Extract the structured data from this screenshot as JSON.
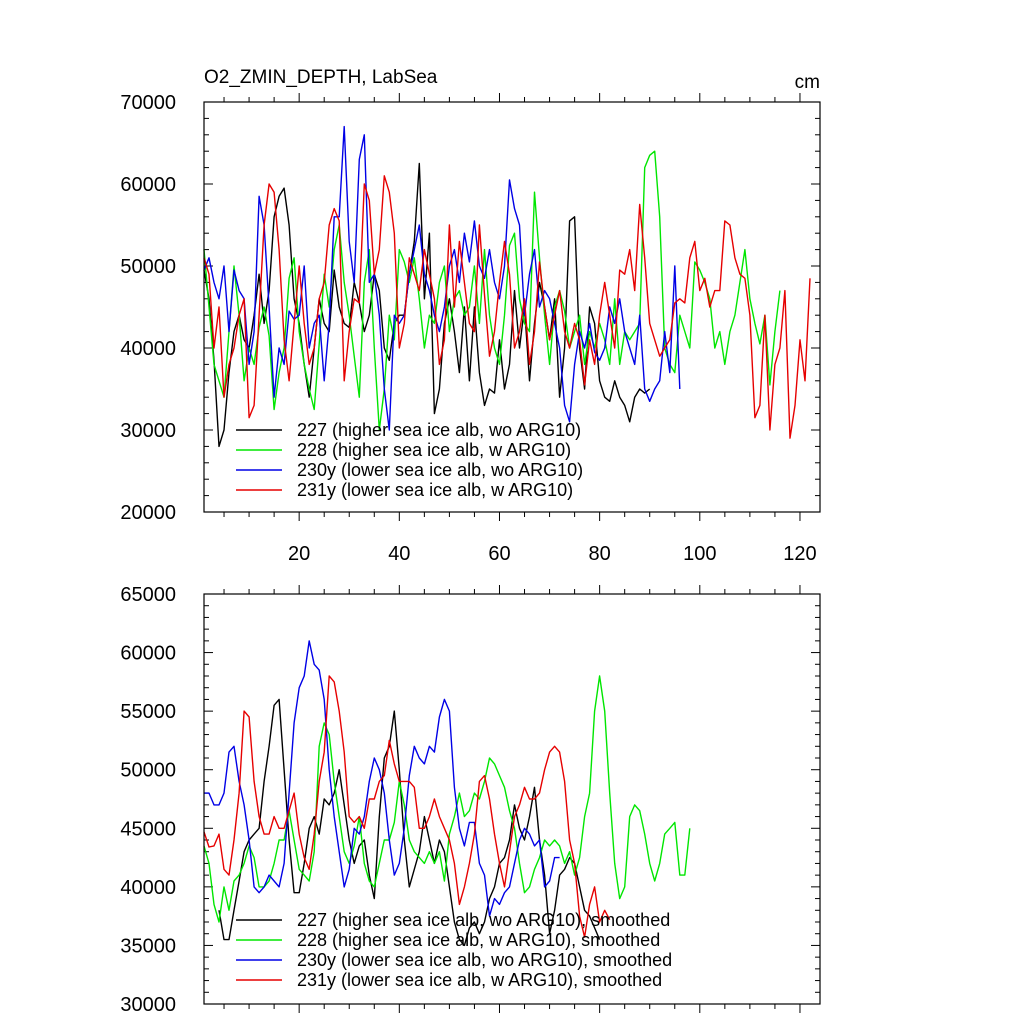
{
  "chart_data": [
    {
      "type": "line",
      "title": "O2_ZMIN_DEPTH, LabSea",
      "units": "cm",
      "xlabel": "",
      "ylabel": "",
      "xlim": [
        1,
        124
      ],
      "ylim": [
        20000,
        70000
      ],
      "xticks": [
        20,
        40,
        60,
        80,
        100,
        120
      ],
      "yticks": [
        20000,
        30000,
        40000,
        50000,
        60000,
        70000
      ],
      "legend_position": "bottom-left",
      "series": [
        {
          "name": "227 (higher sea ice alb, wo ARG10)",
          "color": "#000000",
          "x_start": 1,
          "values": [
            49500,
            46000,
            38500,
            28000,
            30000,
            37000,
            42000,
            44000,
            41000,
            40000,
            44000,
            49000,
            43000,
            47000,
            56000,
            58500,
            59500,
            55000,
            46000,
            43000,
            38000,
            34000,
            40000,
            46000,
            43000,
            42000,
            49500,
            45000,
            43000,
            42500,
            48000,
            45500,
            42000,
            44000,
            49000,
            47000,
            40000,
            38500,
            43000,
            44000,
            44000,
            49000,
            53000,
            62500,
            46000,
            54000,
            32000,
            35000,
            43000,
            46000,
            42000,
            37000,
            45000,
            36000,
            45000,
            37000,
            33000,
            35000,
            34500,
            41000,
            35000,
            38000,
            47000,
            40000,
            45000,
            36000,
            43000,
            48000,
            45000,
            41000,
            46000,
            34000,
            40000,
            55500,
            56000,
            40000,
            35000,
            45000,
            43000,
            36000,
            34000,
            33500,
            36000,
            34000,
            33000,
            31000,
            34000,
            35000,
            34500,
            35000
          ]
        },
        {
          "name": "228 (higher sea ice alb, w ARG10)",
          "color": "#00e600",
          "x_start": 1,
          "values": [
            52000,
            45000,
            38000,
            36000,
            34000,
            42000,
            50000,
            44000,
            36000,
            40000,
            38000,
            42500,
            45000,
            41500,
            32500,
            37000,
            40000,
            48500,
            51000,
            42000,
            38000,
            35000,
            32500,
            40500,
            49000,
            45000,
            52000,
            55000,
            48000,
            44000,
            39000,
            34000,
            48000,
            52000,
            40000,
            30000,
            35000,
            44000,
            41000,
            52000,
            50500,
            48000,
            51000,
            46000,
            40000,
            44000,
            43000,
            48000,
            50000,
            42000,
            46000,
            47000,
            44000,
            45000,
            50000,
            43000,
            52000,
            44000,
            40000,
            38000,
            44000,
            52500,
            54000,
            46000,
            43000,
            42000,
            59000,
            51000,
            44000,
            38000,
            45000,
            47000,
            44500,
            40000,
            42000,
            44000,
            38000,
            42000,
            40000,
            43000,
            41000,
            38000,
            46000,
            38000,
            42000,
            41000,
            42000,
            43000,
            62000,
            63500,
            64000,
            56000,
            40000,
            38000,
            37000,
            44000,
            42000,
            40000,
            50500,
            49500,
            48000,
            46000,
            40000,
            42000,
            38000,
            42000,
            44000,
            48000,
            52000,
            46000,
            43000,
            40500,
            44000,
            35500,
            42000,
            47000
          ]
        },
        {
          "name": "230y (lower sea ice alb, wo ARG10)",
          "color": "#0000e6",
          "x_start": 1,
          "values": [
            49500,
            51000,
            48000,
            46000,
            50000,
            42000,
            49500,
            47000,
            46000,
            38000,
            42000,
            58500,
            55000,
            45000,
            34000,
            40000,
            38000,
            44500,
            43500,
            44000,
            50000,
            40000,
            43000,
            44000,
            36000,
            43000,
            56000,
            56000,
            67000,
            53000,
            48000,
            63000,
            66000,
            48000,
            49000,
            44000,
            35000,
            30000,
            44000,
            43000,
            44000,
            49000,
            52000,
            55000,
            49000,
            47000,
            44000,
            42000,
            45000,
            50000,
            52000,
            48000,
            54000,
            50500,
            55500,
            50000,
            48500,
            52000,
            48000,
            46000,
            50000,
            60500,
            57000,
            55000,
            44000,
            49000,
            52000,
            45000,
            47000,
            46000,
            43000,
            40000,
            33000,
            31000,
            38000,
            42000,
            40000,
            43000,
            39500,
            38500,
            40000,
            45000,
            43000,
            46000,
            42000,
            40000,
            38000,
            44000,
            35000,
            33500,
            35000,
            36000,
            42000,
            37000,
            50000,
            35000
          ]
        },
        {
          "name": "231y (lower sea ice alb, w ARG10)",
          "color": "#e60000",
          "x_start": 1,
          "values": [
            51000,
            49000,
            40000,
            45000,
            34000,
            38000,
            40000,
            44000,
            46000,
            31500,
            33000,
            44000,
            55000,
            60000,
            59000,
            52000,
            41000,
            36000,
            43000,
            50000,
            43000,
            38000,
            40000,
            46000,
            48000,
            55000,
            57000,
            55500,
            36000,
            42000,
            46000,
            45500,
            60000,
            58000,
            49000,
            52000,
            61000,
            59000,
            54000,
            40000,
            43000,
            51000,
            49000,
            47000,
            52000,
            49000,
            46000,
            38000,
            41000,
            55000,
            45000,
            53000,
            48000,
            43000,
            42000,
            55000,
            46500,
            39000,
            42000,
            48000,
            53000,
            49000,
            40000,
            42000,
            46000,
            38000,
            42000,
            50500,
            45000,
            41000,
            44000,
            47000,
            42000,
            40000,
            43000,
            41000,
            35500,
            41000,
            38000,
            44000,
            48000,
            44000,
            40000,
            49500,
            49000,
            52000,
            47000,
            57500,
            51000,
            43000,
            41000,
            39000,
            40000,
            41000,
            45500,
            46000,
            45500,
            51000,
            53000,
            47000,
            48500,
            45000,
            47000,
            47000,
            55500,
            55000,
            51000,
            49000,
            48500,
            44000,
            31500,
            33000,
            44000,
            30000,
            38000,
            40000,
            47000,
            29000,
            33000,
            41000,
            36000,
            48500
          ]
        }
      ]
    },
    {
      "type": "line",
      "title": "",
      "xlabel": "",
      "ylabel": "",
      "xlim": [
        1,
        124
      ],
      "ylim": [
        30000,
        65000
      ],
      "xticks": [
        20,
        40,
        60,
        80,
        100,
        120
      ],
      "yticks": [
        30000,
        35000,
        40000,
        45000,
        50000,
        55000,
        60000,
        65000
      ],
      "legend_position": "bottom-left",
      "series": [
        {
          "name": "227 (higher sea ice alb, wo ARG10), smoothed",
          "color": "#000000",
          "x_start": 4,
          "values": [
            38000,
            35500,
            35500,
            38000,
            40500,
            43000,
            44000,
            44500,
            45000,
            49000,
            52000,
            55500,
            56000,
            50000,
            44000,
            39500,
            39500,
            42000,
            45000,
            46000,
            44500,
            47500,
            47000,
            48000,
            50000,
            47000,
            44000,
            42000,
            43500,
            44000,
            41000,
            39000,
            46000,
            51000,
            52000,
            55000,
            50000,
            44000,
            40000,
            41500,
            43000,
            46000,
            44000,
            42000,
            44000,
            43000,
            40000,
            37000,
            35500,
            35000,
            36500,
            37000,
            36000,
            37000,
            39000,
            40000,
            42000,
            42500,
            44000,
            47000,
            45000,
            44000,
            46000,
            48500,
            44000,
            41000,
            36000,
            38000,
            41000,
            41500,
            42500,
            42000,
            40000,
            38000,
            37500,
            36500,
            35500
          ]
        },
        {
          "name": "228 (higher sea ice alb, w ARG10), smoothed",
          "color": "#00e600",
          "x_start": 1,
          "values": [
            43500,
            42000,
            38500,
            37000,
            40000,
            38000,
            40500,
            41000,
            42000,
            43500,
            42500,
            40000,
            40000,
            40500,
            42000,
            44000,
            44000,
            46500,
            44000,
            41500,
            41000,
            40500,
            43000,
            52000,
            54000,
            53000,
            49000,
            46000,
            43000,
            42000,
            43500,
            46000,
            42000,
            40500,
            40000,
            42000,
            44000,
            44000,
            45500,
            49000,
            47000,
            44000,
            43000,
            42500,
            42000,
            43000,
            42000,
            43000,
            40500,
            44500,
            46000,
            48000,
            46000,
            46500,
            48000,
            47500,
            49000,
            51000,
            50500,
            49500,
            48500,
            46500,
            45000,
            42000,
            39500,
            40000,
            41500,
            42500,
            44000,
            43500,
            44000,
            43500,
            42000,
            43000,
            41000,
            42500,
            46000,
            48000,
            55000,
            58000,
            55000,
            48000,
            42000,
            39000,
            40000,
            46000,
            47000,
            46500,
            44500,
            42000,
            40500,
            42000,
            44500,
            45000,
            45500,
            41000,
            41000,
            45000
          ]
        },
        {
          "name": "230y (lower sea ice alb, wo ARG10), smoothed",
          "color": "#0000e6",
          "x_start": 1,
          "values": [
            48000,
            48000,
            47000,
            47000,
            48000,
            51500,
            52000,
            49000,
            47000,
            44000,
            40000,
            39500,
            40000,
            41000,
            40500,
            40000,
            42000,
            48000,
            54000,
            57000,
            58000,
            61000,
            59000,
            58500,
            56000,
            50000,
            46000,
            43000,
            40000,
            41500,
            45000,
            44500,
            46000,
            49000,
            51000,
            50000,
            48000,
            44000,
            41000,
            42000,
            45000,
            49500,
            52000,
            51000,
            50500,
            52000,
            51500,
            54500,
            56000,
            55000,
            48500,
            45000,
            43500,
            45500,
            45500,
            42000,
            41000,
            37500,
            39000,
            38500,
            39500,
            40000,
            42000,
            44000,
            45000,
            44500,
            43500,
            44000,
            40000,
            40500,
            42500,
            42500
          ]
        },
        {
          "name": "231y (lower sea ice alb, w ARG10), smoothed",
          "color": "#e60000",
          "x_start": 1,
          "values": [
            44700,
            43400,
            43500,
            44500,
            41500,
            41000,
            44000,
            48000,
            55000,
            54500,
            49000,
            46000,
            44500,
            44500,
            46000,
            45000,
            45000,
            46500,
            48000,
            44500,
            42500,
            41500,
            44500,
            49000,
            51500,
            58000,
            57500,
            55000,
            51500,
            46000,
            45500,
            46000,
            45000,
            47500,
            47500,
            49000,
            49500,
            52500,
            50500,
            49000,
            49000,
            49000,
            48500,
            45000,
            45000,
            46000,
            47500,
            46000,
            45000,
            44000,
            42000,
            38500,
            40000,
            42000,
            44500,
            49000,
            49500,
            47500,
            44500,
            42000,
            40000,
            43000,
            46000,
            47000,
            48500,
            47500,
            47500,
            48000,
            50000,
            51500,
            52000,
            51500,
            49000,
            44000,
            42000,
            37500,
            35700,
            38500,
            40000,
            37000,
            38000,
            37200
          ]
        }
      ]
    }
  ]
}
